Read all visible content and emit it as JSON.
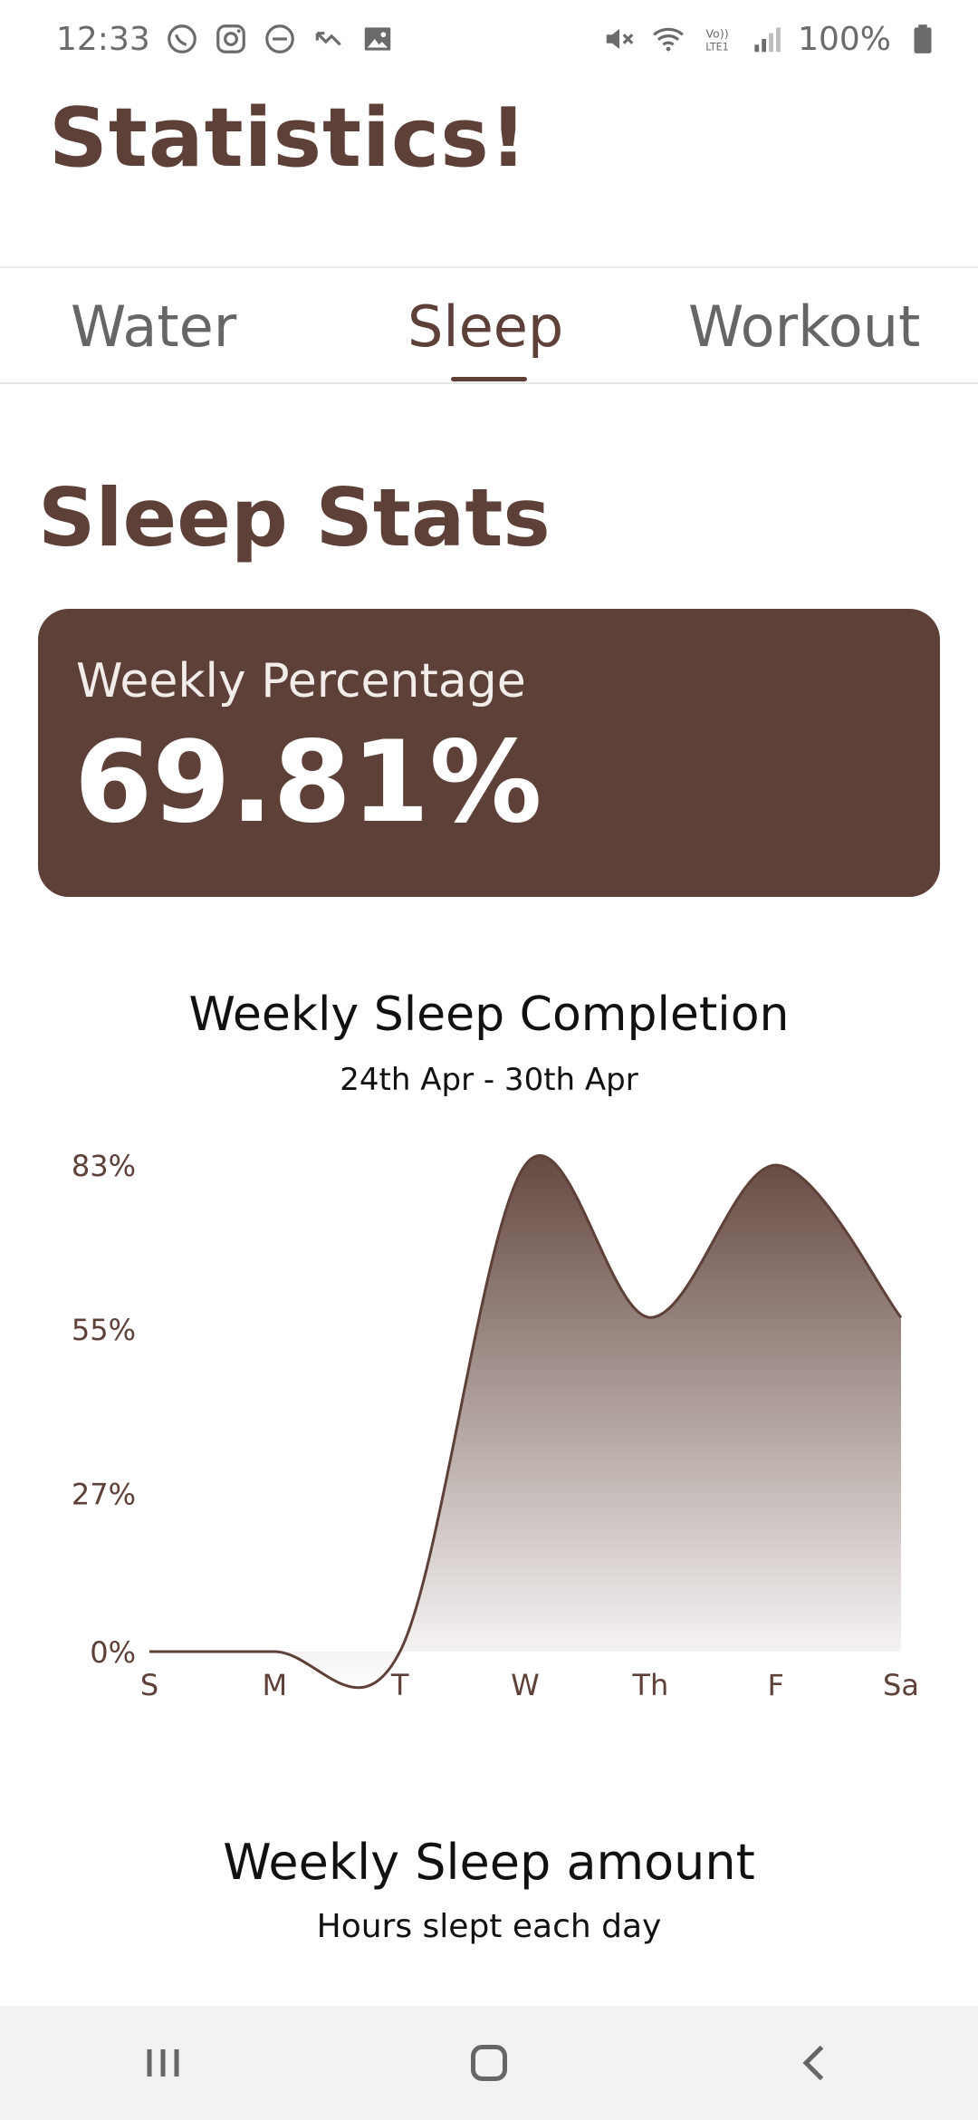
{
  "status_bar": {
    "time": "12:33",
    "battery_text": "100%",
    "left_icons": [
      "whatsapp-icon",
      "instagram-icon",
      "do-not-disturb-icon",
      "missed-call-icon",
      "gallery-icon"
    ],
    "right_icons": [
      "mute-icon",
      "wifi-icon",
      "volte-icon",
      "signal-icon",
      "battery-icon"
    ]
  },
  "app": {
    "title": "Statistics!"
  },
  "tabs": [
    {
      "label": "Water",
      "selected": false
    },
    {
      "label": "Sleep",
      "selected": true
    },
    {
      "label": "Workout",
      "selected": false
    }
  ],
  "section": {
    "title": "Sleep Stats"
  },
  "card": {
    "label": "Weekly Percentage",
    "value": "69.81%"
  },
  "chart_data": {
    "type": "area",
    "title": "Weekly Sleep Completion",
    "subtitle": "24th Apr - 30th Apr",
    "categories": [
      "S",
      "M",
      "T",
      "W",
      "Th",
      "F",
      "Sa"
    ],
    "values": [
      0,
      0,
      0,
      83,
      57,
      83,
      57
    ],
    "ytick_labels": [
      "83%",
      "55%",
      "27%",
      "0%"
    ],
    "yticks": [
      83,
      55,
      27,
      0
    ],
    "ylim": [
      0,
      83
    ],
    "xlabel": "",
    "ylabel": "",
    "grid": false,
    "color": "#5d4037"
  },
  "amount_chart": {
    "title": "Weekly Sleep amount",
    "subtitle": "Hours slept each day"
  },
  "nav": {
    "buttons": [
      "recent-apps-icon",
      "home-icon",
      "back-icon"
    ]
  },
  "colors": {
    "primary": "#5d4037",
    "tab_inactive": "#666666",
    "nav_bg": "#f2f2f2"
  }
}
